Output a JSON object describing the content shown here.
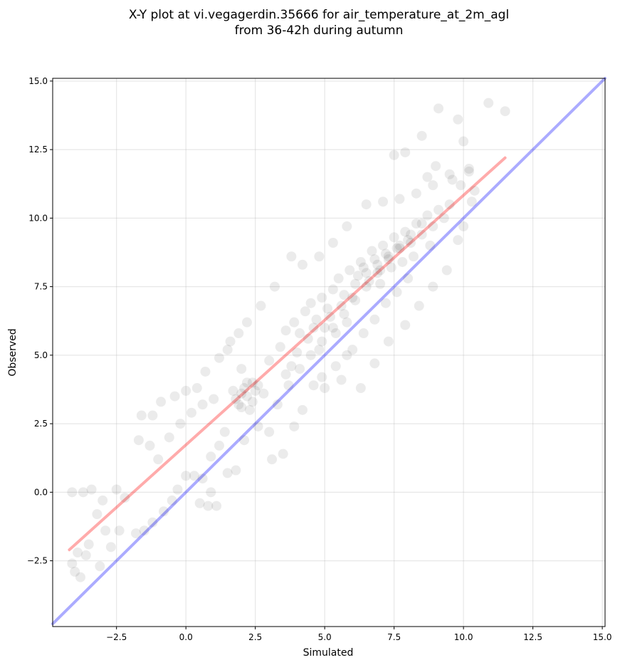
{
  "chart_data": {
    "type": "scatter",
    "title": "X-Y plot at vi.vegagerdin.35666 for air_temperature_at_2m_agl",
    "subtitle": "from 36-42h during autumn",
    "xlabel": "Simulated",
    "ylabel": "Observed",
    "xlim": [
      -4.8,
      15.1
    ],
    "ylim": [
      -4.9,
      15.1
    ],
    "xticks": [
      -2.5,
      0.0,
      2.5,
      5.0,
      7.5,
      10.0,
      12.5,
      15.0
    ],
    "yticks": [
      -2.5,
      0.0,
      2.5,
      5.0,
      7.5,
      10.0,
      12.5,
      15.0
    ],
    "xtick_labels": [
      "−2.5",
      "0.0",
      "2.5",
      "5.0",
      "7.5",
      "10.0",
      "12.5",
      "15.0"
    ],
    "ytick_labels": [
      "−2.5",
      "0.0",
      "2.5",
      "5.0",
      "7.5",
      "10.0",
      "12.5",
      "15.0"
    ],
    "grid": true,
    "marker_color": "#000000",
    "marker_opacity": 0.08,
    "reference_lines": [
      {
        "kind": "identity",
        "color": "#0000ff",
        "opacity": 0.33,
        "x": [
          -4.8,
          15.1
        ],
        "y": [
          -4.8,
          15.1
        ]
      },
      {
        "kind": "regression",
        "color": "#ff0000",
        "opacity": 0.33,
        "x": [
          -4.2,
          11.5
        ],
        "y": [
          -2.1,
          12.2
        ]
      }
    ],
    "points": [
      [
        10.9,
        14.2
      ],
      [
        9.1,
        14.0
      ],
      [
        11.5,
        13.9
      ],
      [
        9.8,
        13.6
      ],
      [
        8.5,
        13.0
      ],
      [
        10.0,
        12.8
      ],
      [
        7.9,
        12.4
      ],
      [
        7.5,
        12.3
      ],
      [
        9.0,
        11.9
      ],
      [
        10.2,
        11.8
      ],
      [
        9.6,
        11.4
      ],
      [
        8.9,
        11.2
      ],
      [
        -4.1,
        0.0
      ],
      [
        -3.7,
        0.0
      ],
      [
        -3.4,
        0.1
      ],
      [
        -3.0,
        -0.3
      ],
      [
        -2.5,
        0.1
      ],
      [
        -2.2,
        -0.2
      ],
      [
        -3.2,
        -0.8
      ],
      [
        -2.9,
        -1.4
      ],
      [
        -3.5,
        -1.9
      ],
      [
        -3.1,
        -2.7
      ],
      [
        -4.1,
        -2.6
      ],
      [
        -4.0,
        -2.9
      ],
      [
        -3.8,
        -3.1
      ],
      [
        -3.6,
        -2.3
      ],
      [
        -3.9,
        -2.2
      ],
      [
        -2.4,
        -1.4
      ],
      [
        -1.8,
        -1.5
      ],
      [
        -1.5,
        -1.4
      ],
      [
        -2.7,
        -2.0
      ],
      [
        -1.2,
        -1.1
      ],
      [
        -0.8,
        -0.7
      ],
      [
        -0.5,
        -0.3
      ],
      [
        -0.3,
        0.1
      ],
      [
        0.0,
        0.6
      ],
      [
        0.3,
        0.6
      ],
      [
        0.6,
        0.5
      ],
      [
        0.9,
        0.0
      ],
      [
        1.1,
        -0.5
      ],
      [
        0.8,
        -0.5
      ],
      [
        0.5,
        -0.4
      ],
      [
        -1.0,
        1.2
      ],
      [
        -1.3,
        1.7
      ],
      [
        -1.7,
        1.9
      ],
      [
        -1.6,
        2.8
      ],
      [
        -1.2,
        2.8
      ],
      [
        -0.9,
        3.3
      ],
      [
        -0.4,
        3.5
      ],
      [
        0.0,
        3.7
      ],
      [
        0.4,
        3.8
      ],
      [
        0.7,
        4.4
      ],
      [
        1.2,
        4.9
      ],
      [
        1.6,
        5.5
      ],
      [
        -0.6,
        2.0
      ],
      [
        -0.2,
        2.5
      ],
      [
        0.2,
        2.9
      ],
      [
        0.6,
        3.2
      ],
      [
        1.0,
        3.4
      ],
      [
        1.4,
        2.2
      ],
      [
        1.8,
        0.8
      ],
      [
        1.5,
        0.7
      ],
      [
        1.2,
        1.7
      ],
      [
        0.9,
        1.3
      ],
      [
        3.5,
        1.4
      ],
      [
        3.1,
        1.2
      ],
      [
        2.1,
        1.9
      ],
      [
        2.6,
        2.4
      ],
      [
        3.0,
        2.2
      ],
      [
        3.9,
        2.4
      ],
      [
        4.2,
        3.0
      ],
      [
        4.6,
        3.9
      ],
      [
        5.0,
        3.8
      ],
      [
        5.6,
        4.1
      ],
      [
        6.3,
        3.8
      ],
      [
        6.8,
        4.7
      ],
      [
        7.3,
        5.5
      ],
      [
        7.9,
        6.1
      ],
      [
        8.4,
        6.8
      ],
      [
        8.9,
        7.5
      ],
      [
        9.4,
        8.1
      ],
      [
        9.8,
        9.2
      ],
      [
        10.0,
        9.7
      ],
      [
        10.3,
        10.6
      ],
      [
        9.9,
        11.2
      ],
      [
        10.4,
        11.0
      ],
      [
        10.2,
        11.7
      ],
      [
        9.5,
        11.6
      ],
      [
        8.7,
        11.5
      ],
      [
        8.3,
        10.9
      ],
      [
        7.7,
        10.7
      ],
      [
        7.1,
        10.6
      ],
      [
        6.5,
        10.5
      ],
      [
        5.8,
        9.7
      ],
      [
        5.3,
        9.1
      ],
      [
        4.8,
        8.6
      ],
      [
        4.2,
        8.3
      ],
      [
        3.8,
        8.6
      ],
      [
        3.2,
        7.5
      ],
      [
        2.7,
        6.8
      ],
      [
        2.2,
        6.2
      ],
      [
        1.9,
        5.8
      ],
      [
        1.5,
        5.2
      ],
      [
        2.0,
        4.5
      ],
      [
        2.4,
        4.0
      ],
      [
        2.8,
        3.6
      ],
      [
        3.3,
        3.2
      ],
      [
        3.7,
        3.9
      ],
      [
        4.1,
        4.5
      ],
      [
        4.5,
        5.0
      ],
      [
        4.9,
        5.5
      ],
      [
        5.3,
        6.0
      ],
      [
        5.7,
        6.5
      ],
      [
        6.1,
        7.0
      ],
      [
        6.5,
        7.5
      ],
      [
        6.9,
        8.0
      ],
      [
        7.3,
        8.5
      ],
      [
        7.7,
        9.0
      ],
      [
        8.1,
        9.4
      ],
      [
        8.5,
        9.8
      ],
      [
        1.8,
        3.4
      ],
      [
        2.0,
        3.6
      ],
      [
        2.2,
        3.5
      ],
      [
        2.4,
        3.3
      ],
      [
        1.9,
        3.2
      ],
      [
        2.1,
        3.8
      ],
      [
        2.3,
        3.0
      ],
      [
        2.5,
        3.7
      ],
      [
        1.7,
        3.7
      ],
      [
        2.6,
        3.9
      ],
      [
        2.0,
        3.1
      ],
      [
        2.2,
        4.0
      ],
      [
        3.0,
        4.8
      ],
      [
        3.4,
        5.3
      ],
      [
        3.6,
        5.9
      ],
      [
        3.9,
        6.2
      ],
      [
        4.1,
        5.8
      ],
      [
        4.3,
        6.6
      ],
      [
        4.5,
        6.9
      ],
      [
        4.7,
        6.3
      ],
      [
        4.9,
        7.1
      ],
      [
        5.1,
        6.7
      ],
      [
        5.3,
        7.4
      ],
      [
        5.5,
        7.8
      ],
      [
        5.7,
        7.2
      ],
      [
        5.9,
        8.1
      ],
      [
        6.1,
        7.6
      ],
      [
        6.3,
        8.4
      ],
      [
        6.5,
        8.0
      ],
      [
        6.7,
        8.8
      ],
      [
        6.9,
        8.3
      ],
      [
        7.1,
        9.0
      ],
      [
        7.3,
        8.6
      ],
      [
        7.5,
        9.3
      ],
      [
        7.7,
        8.9
      ],
      [
        7.9,
        9.5
      ],
      [
        8.1,
        9.1
      ],
      [
        8.3,
        9.8
      ],
      [
        8.5,
        9.4
      ],
      [
        8.7,
        10.1
      ],
      [
        8.9,
        9.7
      ],
      [
        9.1,
        10.3
      ],
      [
        9.3,
        10.0
      ],
      [
        9.5,
        10.5
      ],
      [
        6.2,
        7.9
      ],
      [
        6.4,
        8.2
      ],
      [
        6.6,
        7.7
      ],
      [
        6.8,
        8.5
      ],
      [
        7.0,
        8.1
      ],
      [
        7.2,
        8.7
      ],
      [
        7.4,
        8.2
      ],
      [
        7.6,
        8.9
      ],
      [
        7.8,
        8.4
      ],
      [
        8.0,
        9.2
      ],
      [
        5.0,
        6.0
      ],
      [
        5.2,
        6.4
      ],
      [
        5.4,
        5.8
      ],
      [
        5.6,
        6.8
      ],
      [
        5.8,
        6.2
      ],
      [
        6.0,
        7.1
      ],
      [
        4.4,
        5.6
      ],
      [
        4.6,
        6.0
      ],
      [
        4.8,
        5.2
      ],
      [
        3.8,
        4.6
      ],
      [
        4.0,
        5.1
      ],
      [
        3.6,
        4.3
      ],
      [
        6.0,
        5.2
      ],
      [
        6.4,
        5.8
      ],
      [
        6.8,
        6.3
      ],
      [
        7.2,
        6.9
      ],
      [
        7.6,
        7.3
      ],
      [
        8.0,
        7.8
      ],
      [
        5.4,
        4.6
      ],
      [
        5.8,
        5.0
      ],
      [
        4.9,
        4.2
      ],
      [
        7.0,
        7.6
      ],
      [
        8.2,
        8.6
      ],
      [
        8.8,
        9.0
      ]
    ]
  }
}
